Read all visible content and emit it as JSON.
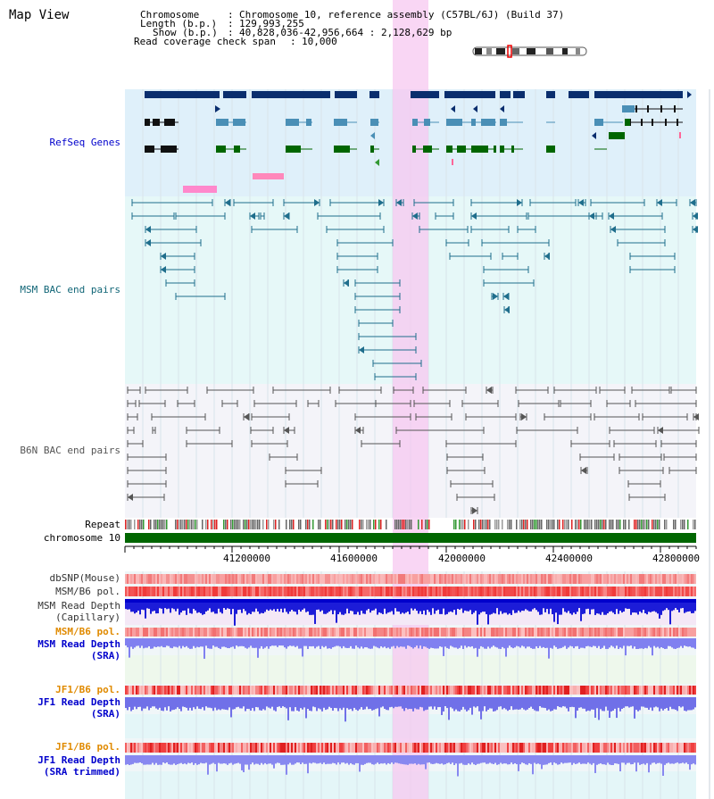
{
  "title": "Map View",
  "info": {
    "chromosome_key": "Chromosome",
    "chromosome_value": "Chromosome 10, reference assembly (C57BL/6J) (Build 37)",
    "length_key": "Length (b.p.)",
    "length_value": "129,993,255",
    "show_key": "Show (b.p.)",
    "show_value": "40,828,036-42,956,664 : 2,128,629 bp",
    "coverage_key": "Read coverage check span",
    "coverage_value": "10,000"
  },
  "tracks": {
    "refseq": "RefSeq Genes",
    "msm_bac": "MSM BAC end pairs",
    "b6n_bac": "B6N BAC end pairs",
    "repeat": "Repeat",
    "chromosome": "chromosome 10",
    "dbsnp": "dbSNP(Mouse)",
    "msm_b6_pol": "MSM/B6 pol.",
    "msm_depth_cap_1": "MSM Read Depth",
    "msm_depth_cap_2": "(Capillary)",
    "msm_b6_pol2": "MSM/B6 pol.",
    "msm_depth_sra_1": "MSM Read Depth",
    "msm_depth_sra_2": "(SRA)",
    "jf1_b6_pol": "JF1/B6 pol.",
    "jf1_depth_sra_1": "JF1 Read Depth",
    "jf1_depth_sra_2": "(SRA)",
    "jf1_b6_pol2": "JF1/B6 pol.",
    "jf1_depth_trim_1": "JF1 Read Depth",
    "jf1_depth_trim_2": "(SRA trimmed)"
  },
  "axis": {
    "ticks": [
      "41200000",
      "41600000",
      "42000000",
      "42400000",
      "42800000"
    ]
  },
  "colors": {
    "gene_dark": "#0a2e6e",
    "gene_mid": "#4a8fb6",
    "gene_green": "#006600",
    "msm_line": "#1f6e8c",
    "b6n_line": "#555555",
    "highlight": "#f7c8f0",
    "refseq_bg": "#dff0fa",
    "msm_bg": "#e6f8f8",
    "b6n_bg": "#f4f4f9",
    "label_blue": "#0000cc",
    "label_teal": "#116677",
    "label_orange": "#e08a00"
  }
}
